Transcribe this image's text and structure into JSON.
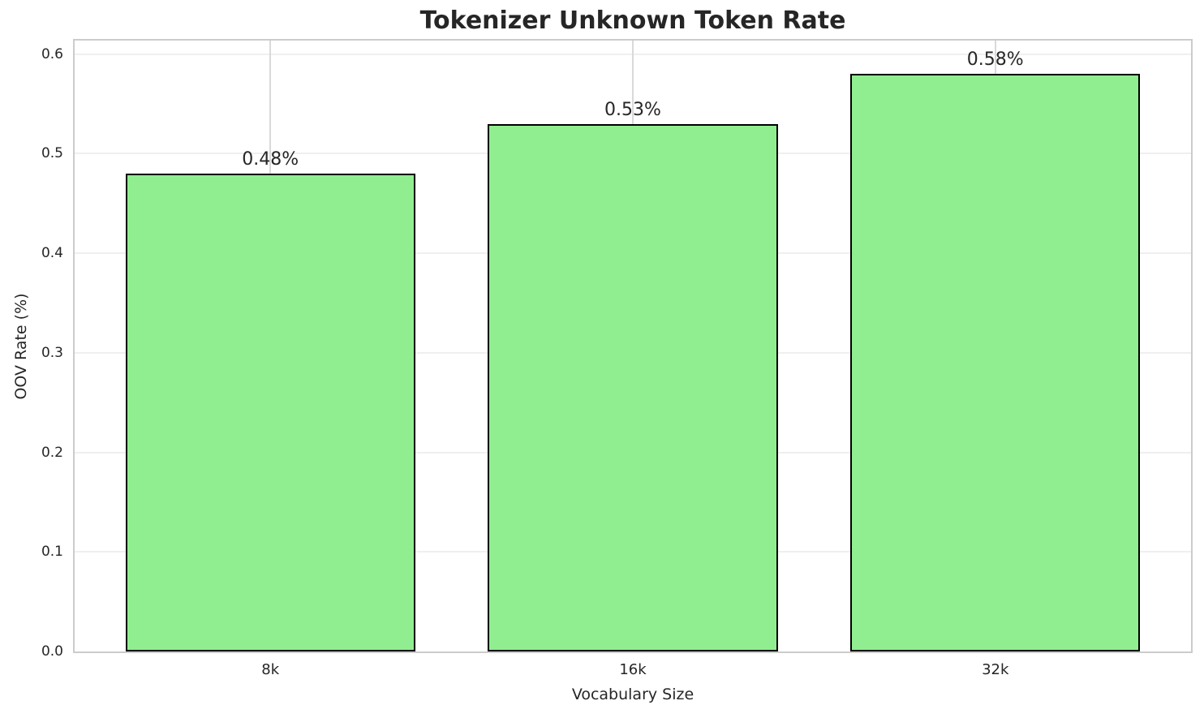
{
  "chart_data": {
    "type": "bar",
    "title": "Tokenizer Unknown Token Rate",
    "xlabel": "Vocabulary Size",
    "ylabel": "OOV Rate (%)",
    "categories": [
      "8k",
      "16k",
      "32k"
    ],
    "values": [
      0.48,
      0.53,
      0.58
    ],
    "bar_labels": [
      "0.48%",
      "0.53%",
      "0.58%"
    ],
    "yticks": [
      0.0,
      0.1,
      0.2,
      0.3,
      0.4,
      0.5,
      0.6
    ],
    "ytick_labels": [
      "0.0",
      "0.1",
      "0.2",
      "0.3",
      "0.4",
      "0.5",
      "0.6"
    ],
    "ylim": [
      0,
      0.6135
    ],
    "xlim": [
      -0.54,
      2.54
    ],
    "bar_width": 0.8,
    "grid": true,
    "legend": null,
    "colors": {
      "bar_fill": "#90ee90",
      "bar_edge": "#000000",
      "grid_h": "#efefef",
      "grid_v": "#d9d9d9",
      "spine": "#cccccc",
      "text": "#262626",
      "background": "#ffffff"
    }
  }
}
